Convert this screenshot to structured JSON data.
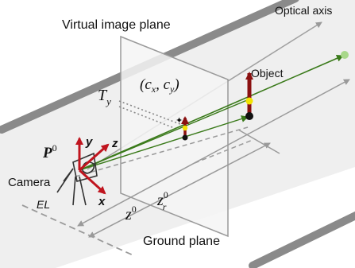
{
  "labels": {
    "optical_axis": "Optical axis",
    "virtual_image_plane": "Virtual image plane",
    "object": "Object",
    "principal_point": "(c_x, c_y)",
    "ty_main": "T",
    "ty_sub": "y",
    "p_main": "P",
    "p_sup": "0",
    "camera": "Camera",
    "axis_x": "x",
    "axis_y": "y",
    "axis_z": "z",
    "el": "EL",
    "z0_main": "z",
    "z0_sup": "0",
    "zr_main": "z",
    "zr_sup": "0",
    "zr_sub": "r",
    "ground_plane": "Ground plane"
  },
  "colors": {
    "ground": "#efefef",
    "rail": "#8a8a8a",
    "image_plane": "#f4f4f4",
    "guide": "#9a9a9a",
    "ray": "#3a7a1a",
    "axis_red": "#c0151f",
    "axis_dark_red": "#8a1010",
    "keypoint_yellow": "#f2e300",
    "optical_axis_end": "#a8d88a"
  }
}
